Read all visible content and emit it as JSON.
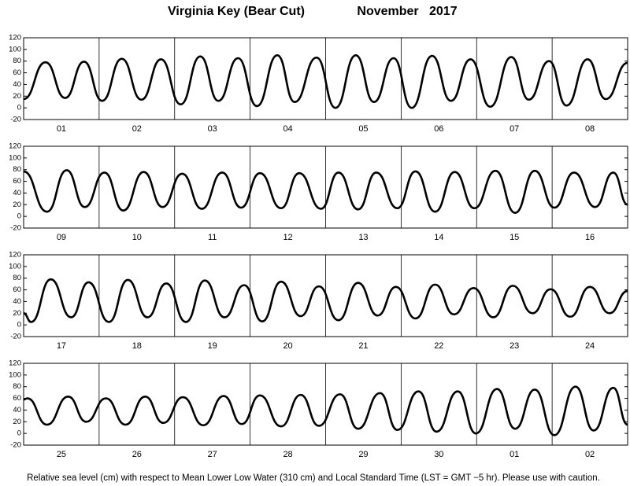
{
  "header": {
    "station": "Virginia Key (Bear Cut)",
    "period": "November   2017"
  },
  "footer": "Relative sea level (cm) with respect to Mean Lower Low Water (310 cm) and Local Standard Time (LST = GMT −5 hr). Please use with caution.",
  "chart_data": [
    {
      "type": "line",
      "color": "#000000",
      "xlim": [
        0,
        8
      ],
      "ylim": [
        -20,
        120
      ],
      "yticks": [
        -20,
        0,
        20,
        40,
        60,
        80,
        100,
        120
      ],
      "categories": [
        "01",
        "02",
        "03",
        "04",
        "05",
        "06",
        "07",
        "08"
      ],
      "x": [
        0,
        0.29,
        0.55,
        0.8,
        1.04,
        1.3,
        1.56,
        1.82,
        2.08,
        2.34,
        2.58,
        2.84,
        3.09,
        3.36,
        3.59,
        3.88,
        4.13,
        4.4,
        4.64,
        4.9,
        5.14,
        5.41,
        5.66,
        5.92,
        6.18,
        6.46,
        6.69,
        6.96,
        7.19,
        7.47,
        7.71,
        8.0
      ],
      "values": [
        15,
        78,
        17,
        79,
        12,
        84,
        14,
        83,
        6,
        88,
        12,
        85,
        3,
        90,
        10,
        86,
        0,
        90,
        10,
        85,
        0,
        89,
        12,
        83,
        2,
        87,
        14,
        80,
        4,
        83,
        15,
        77
      ]
    },
    {
      "type": "line",
      "color": "#000000",
      "xlim": [
        0,
        8
      ],
      "ylim": [
        -20,
        120
      ],
      "yticks": [
        -20,
        0,
        20,
        40,
        60,
        80,
        100,
        120
      ],
      "categories": [
        "09",
        "10",
        "11",
        "12",
        "13",
        "14",
        "15",
        "16"
      ],
      "x": [
        0,
        0.31,
        0.57,
        0.81,
        1.07,
        1.32,
        1.59,
        1.84,
        2.1,
        2.36,
        2.63,
        2.88,
        3.13,
        3.41,
        3.65,
        3.94,
        4.17,
        4.43,
        4.67,
        4.95,
        5.19,
        5.45,
        5.71,
        5.97,
        6.25,
        6.51,
        6.77,
        7.03,
        7.29,
        7.57,
        7.81,
        8.0
      ],
      "values": [
        77,
        8,
        79,
        16,
        75,
        10,
        76,
        16,
        73,
        13,
        75,
        15,
        74,
        14,
        74,
        13,
        75,
        12,
        75,
        14,
        77,
        8,
        76,
        14,
        78,
        6,
        78,
        15,
        75,
        16,
        75,
        20
      ]
    },
    {
      "type": "line",
      "color": "#000000",
      "xlim": [
        0,
        8
      ],
      "ylim": [
        -20,
        120
      ],
      "yticks": [
        -20,
        0,
        20,
        40,
        60,
        80,
        100,
        120
      ],
      "categories": [
        "17",
        "18",
        "19",
        "20",
        "21",
        "22",
        "23",
        "24"
      ],
      "x": [
        0,
        0.1,
        0.36,
        0.63,
        0.86,
        1.13,
        1.38,
        1.64,
        1.89,
        2.15,
        2.4,
        2.66,
        2.92,
        3.16,
        3.41,
        3.67,
        3.91,
        4.17,
        4.43,
        4.69,
        4.93,
        5.19,
        5.45,
        5.7,
        5.96,
        6.22,
        6.48,
        6.74,
        6.98,
        7.24,
        7.5,
        7.76,
        8.0
      ],
      "values": [
        20,
        5,
        78,
        13,
        73,
        5,
        77,
        13,
        71,
        5,
        76,
        13,
        68,
        6,
        74,
        15,
        66,
        8,
        72,
        16,
        65,
        11,
        69,
        18,
        63,
        13,
        67,
        20,
        61,
        14,
        65,
        20,
        58
      ]
    },
    {
      "type": "line",
      "color": "#000000",
      "xlim": [
        0,
        8
      ],
      "ylim": [
        -20,
        120
      ],
      "yticks": [
        -20,
        0,
        20,
        40,
        60,
        80,
        100,
        120
      ],
      "categories": [
        "25",
        "26",
        "27",
        "28",
        "29",
        "30",
        "01",
        "02"
      ],
      "x": [
        0,
        0.05,
        0.31,
        0.59,
        0.83,
        1.09,
        1.35,
        1.61,
        1.85,
        2.11,
        2.38,
        2.65,
        2.89,
        3.13,
        3.41,
        3.67,
        3.91,
        4.19,
        4.43,
        4.72,
        4.95,
        5.23,
        5.47,
        5.75,
        5.99,
        6.27,
        6.51,
        6.77,
        7.03,
        7.31,
        7.55,
        7.81,
        8.0
      ],
      "values": [
        58,
        60,
        15,
        63,
        20,
        60,
        15,
        63,
        18,
        62,
        14,
        64,
        16,
        65,
        12,
        66,
        13,
        67,
        8,
        69,
        6,
        72,
        3,
        72,
        0,
        76,
        8,
        75,
        -3,
        80,
        5,
        78,
        15
      ]
    }
  ]
}
